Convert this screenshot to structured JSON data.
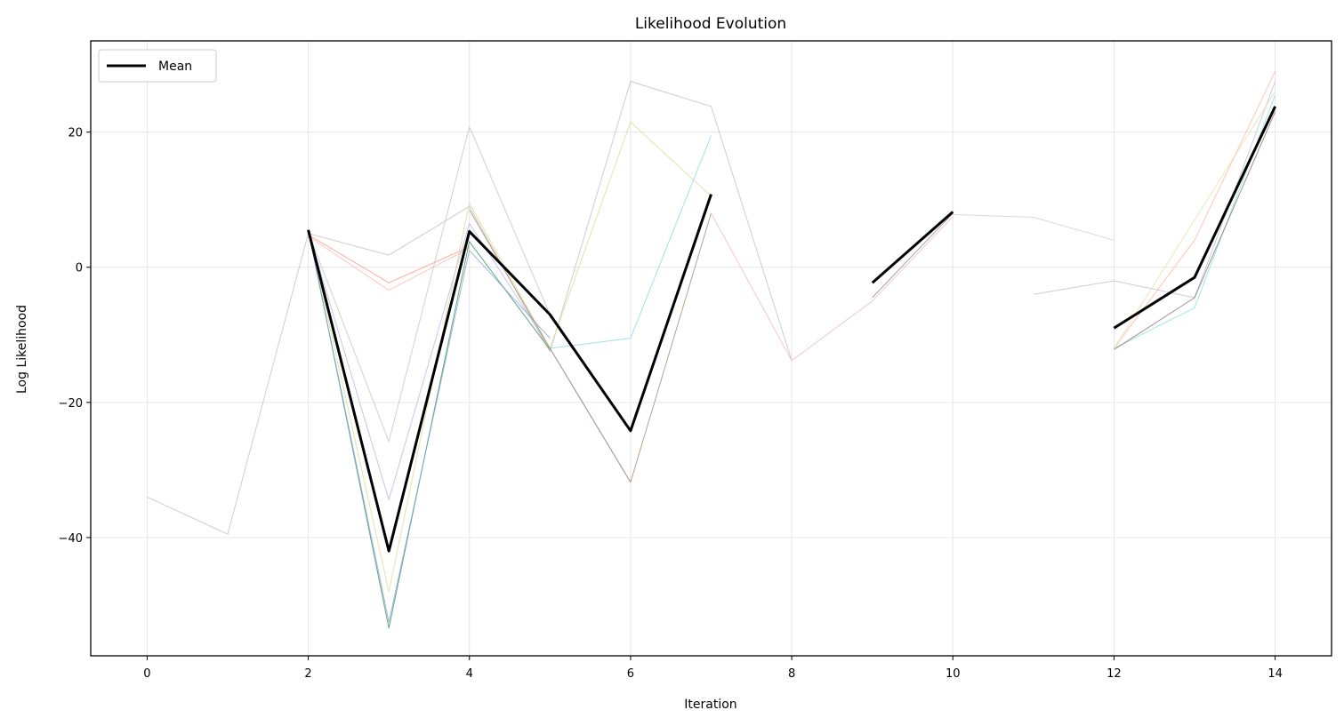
{
  "chart_data": {
    "type": "line",
    "title": "Likelihood Evolution",
    "xlabel": "Iteration",
    "ylabel": "Log Likelihood",
    "xlim": [
      -0.7,
      14.7
    ],
    "ylim": [
      -57.5,
      33.5
    ],
    "xticks": [
      0,
      2,
      4,
      6,
      8,
      10,
      12,
      14
    ],
    "yticks": [
      -40,
      -20,
      0,
      20
    ],
    "grid": true,
    "legend": {
      "placement": "top-left",
      "entries": [
        "Mean"
      ]
    },
    "mean_color": "#000000",
    "series": [
      {
        "color": "#bcbcbc",
        "points": [
          [
            0,
            -34.0
          ],
          [
            1,
            -39.5
          ],
          [
            2,
            5.0
          ],
          [
            3,
            1.8
          ],
          [
            4,
            9.0
          ],
          [
            5,
            -12.5
          ],
          [
            6,
            27.5
          ],
          [
            7,
            23.8
          ],
          [
            8,
            -13.8
          ]
        ]
      },
      {
        "color": "#ff8f7a",
        "points": [
          [
            2,
            4.8
          ],
          [
            3,
            -2.3
          ],
          [
            4,
            3.0
          ]
        ]
      },
      {
        "color": "#ffb3b3",
        "points": [
          [
            2,
            4.6
          ],
          [
            3,
            -3.4
          ],
          [
            4,
            2.8
          ]
        ]
      },
      {
        "color": "#c0c0c0",
        "points": [
          [
            2,
            5.2
          ],
          [
            3,
            -25.8
          ],
          [
            4,
            20.8
          ],
          [
            5,
            -7.0
          ]
        ]
      },
      {
        "color": "#b3b3ee",
        "points": [
          [
            2,
            5.3
          ],
          [
            3,
            -34.4
          ],
          [
            4,
            6.5
          ],
          [
            5,
            -12.0
          ],
          [
            6,
            -31.8
          ]
        ]
      },
      {
        "color": "#2e8b57",
        "points": [
          [
            2,
            5.6
          ],
          [
            3,
            -53.4
          ],
          [
            4,
            3.8
          ],
          [
            5,
            -12.2
          ]
        ]
      },
      {
        "color": "#7fa0d6",
        "points": [
          [
            2,
            5.4
          ],
          [
            3,
            -52.5
          ],
          [
            4,
            2.5
          ],
          [
            5,
            -10.5
          ]
        ]
      },
      {
        "color": "#d9d98f",
        "points": [
          [
            2,
            5.5
          ],
          [
            3,
            -48.0
          ],
          [
            4,
            9.5
          ],
          [
            5,
            -12.0
          ],
          [
            6,
            21.5
          ],
          [
            7,
            10.5
          ]
        ]
      },
      {
        "color": "#9f8060",
        "points": [
          [
            4,
            8.5
          ],
          [
            5,
            -12.0
          ],
          [
            6,
            -31.8
          ],
          [
            7,
            8.0
          ]
        ]
      },
      {
        "color": "#7fd6e0",
        "points": [
          [
            5,
            -12.0
          ],
          [
            6,
            -10.5
          ],
          [
            7,
            19.5
          ]
        ]
      },
      {
        "color": "#f2b3c7",
        "points": [
          [
            7,
            8.0
          ],
          [
            8,
            -13.8
          ],
          [
            9,
            -5.0
          ],
          [
            10,
            7.5
          ]
        ]
      },
      {
        "color": "#8a8a70",
        "points": [
          [
            9,
            -4.5
          ],
          [
            10,
            8.0
          ]
        ]
      },
      {
        "color": "#c8c8e8",
        "points": [
          [
            10,
            7.8
          ],
          [
            11,
            7.4
          ],
          [
            12,
            4.0
          ]
        ]
      },
      {
        "color": "#c0b8d8",
        "points": [
          [
            11,
            -4.0
          ],
          [
            12,
            -2.0
          ],
          [
            13,
            -4.5
          ],
          [
            14,
            27.5
          ]
        ]
      },
      {
        "color": "#ffb3a0",
        "points": [
          [
            12,
            -12.0
          ],
          [
            13,
            4.0
          ],
          [
            14,
            29.0
          ]
        ]
      },
      {
        "color": "#e0e0a0",
        "points": [
          [
            12,
            -12.0
          ],
          [
            13,
            7.0
          ],
          [
            14,
            26.0
          ]
        ]
      },
      {
        "color": "#7fdfe0",
        "points": [
          [
            12,
            -12.0
          ],
          [
            13,
            -6.0
          ],
          [
            14,
            25.5
          ]
        ]
      },
      {
        "color": "#8a6a6a",
        "points": [
          [
            12,
            -12.2
          ],
          [
            13,
            -4.5
          ],
          [
            14,
            23.0
          ]
        ]
      }
    ],
    "mean": [
      [
        2,
        5.5
      ],
      [
        3,
        -42.0
      ],
      [
        4,
        5.3
      ],
      [
        5,
        -7.0
      ],
      [
        6,
        -24.2
      ],
      [
        7,
        10.8
      ],
      null,
      [
        9,
        -2.3
      ],
      [
        10,
        8.2
      ],
      null,
      [
        12,
        -9.0
      ],
      [
        13,
        -1.5
      ],
      [
        14,
        23.8
      ]
    ]
  }
}
